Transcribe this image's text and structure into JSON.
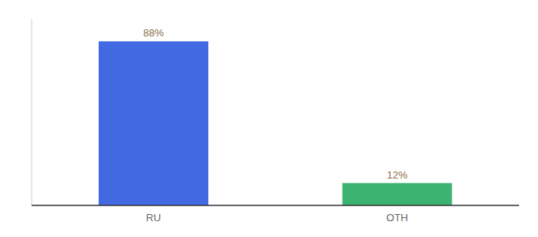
{
  "chart_data": {
    "type": "bar",
    "categories": [
      "RU",
      "OTH"
    ],
    "values": [
      88,
      12
    ],
    "value_labels": [
      "88%",
      "12%"
    ],
    "colors": [
      "#4169E1",
      "#3CB371"
    ],
    "ylim": [
      0,
      100
    ],
    "grid": false,
    "data_labels": true,
    "tick_labels": "x"
  }
}
